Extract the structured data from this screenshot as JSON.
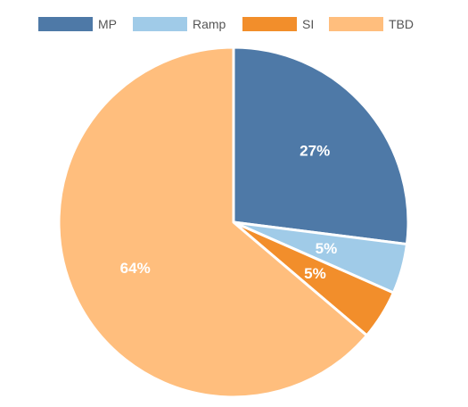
{
  "chart_data": {
    "type": "pie",
    "title": "",
    "legend_position": "top",
    "slices": [
      {
        "name": "MP",
        "value": 27,
        "label": "27%",
        "color": "#4e79a7"
      },
      {
        "name": "Ramp",
        "value": 4.6,
        "label": "5%",
        "color": "#a0cbe8"
      },
      {
        "name": "SI",
        "value": 4.6,
        "label": "5%",
        "color": "#f28e2b"
      },
      {
        "name": "TBD",
        "value": 63.8,
        "label": "64%",
        "color": "#ffbe7d"
      }
    ],
    "start_angle": "12 o'clock",
    "direction": "clockwise",
    "slice_border_color": "#ffffff"
  }
}
